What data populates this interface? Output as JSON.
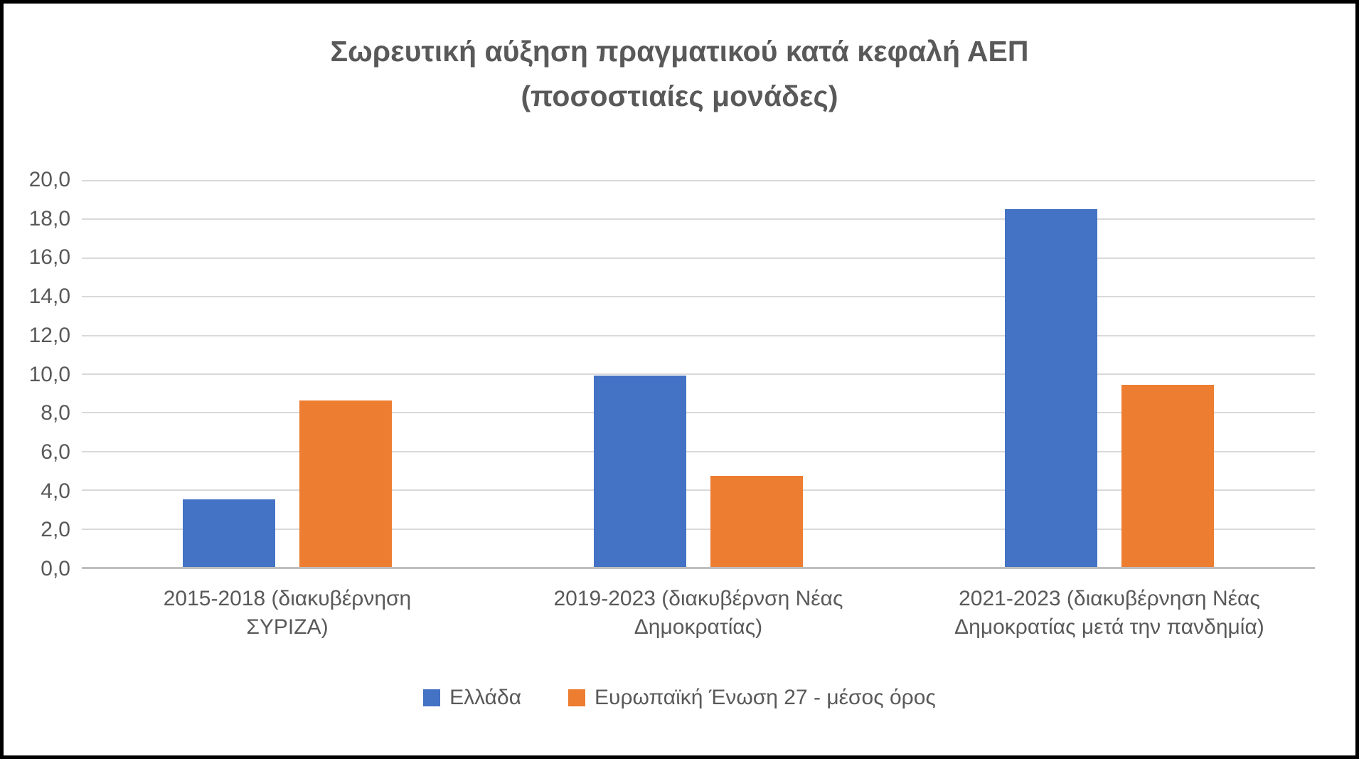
{
  "chart_data": {
    "type": "bar",
    "title": "Σωρευτική αύξηση πραγματικού κατά κεφαλή ΑΕΠ",
    "subtitle": "(ποσοστιαίες μονάδες)",
    "categories": [
      "2015-2018 (διακυβέρνηση ΣΥΡΙΖΑ)",
      "2019-2023 (διακυβέρνση Νέας Δημοκρατίας)",
      "2021-2023 (διακυβέρνηση Νέας Δημοκρατίας μετά την πανδημία)"
    ],
    "series": [
      {
        "name": "Ελλάδα",
        "color": "#4472C4",
        "values": [
          3.5,
          9.9,
          18.5
        ]
      },
      {
        "name": "Ευρωπαϊκή Ένωση 27 - μέσος όρος",
        "color": "#ED7D31",
        "values": [
          8.6,
          4.7,
          9.4
        ]
      }
    ],
    "ylim": [
      0,
      20
    ],
    "ytick_step": 2,
    "ytick_labels_top_to_bottom": [
      "20,0",
      "18,0",
      "16,0",
      "14,0",
      "12,0",
      "10,0",
      "8,0",
      "6,0",
      "4,0",
      "2,0",
      "0,0"
    ],
    "decimal_separator": ",",
    "grid": "horizontal",
    "legend_position": "bottom"
  },
  "colors": {
    "title_text": "#595959",
    "axis_text": "#595959",
    "gridline": "#D9D9D9",
    "axis_line": "#BFBFBF",
    "frame_border": "#000000",
    "background": "#FFFFFF"
  }
}
